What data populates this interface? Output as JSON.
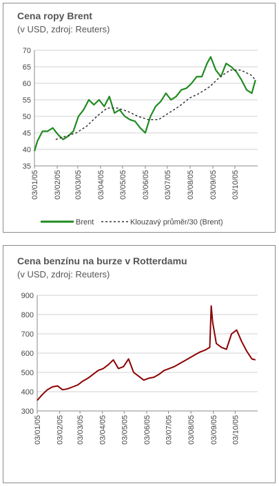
{
  "chart_data": [
    {
      "type": "line",
      "title": "Cena ropy Brent",
      "subtitle": "(v USD, zdroj: Reuters)",
      "ylim": [
        35,
        70
      ],
      "y_ticks": [
        "35",
        "40",
        "45",
        "50",
        "55",
        "60",
        "65",
        "70"
      ],
      "x_ticks": [
        "03/01/05",
        "03/02/05",
        "03/03/05",
        "03/04/05",
        "03/05/05",
        "03/06/05",
        "03/07/05",
        "03/08/05",
        "03/09/05",
        "03/10/05"
      ],
      "grid": "horizontal",
      "legend_position": "bottom",
      "colors": {
        "Brent": "#1f8a1f",
        "Klouzavý průměr/30 (Brent)": "#333333"
      },
      "series": [
        {
          "name": "Brent",
          "style": "solid",
          "x": [
            "2005-01-03",
            "2005-01-07",
            "2005-01-14",
            "2005-01-21",
            "2005-01-28",
            "2005-02-04",
            "2005-02-11",
            "2005-02-18",
            "2005-02-25",
            "2005-03-04",
            "2005-03-11",
            "2005-03-18",
            "2005-03-25",
            "2005-04-01",
            "2005-04-08",
            "2005-04-15",
            "2005-04-22",
            "2005-04-29",
            "2005-05-06",
            "2005-05-13",
            "2005-05-20",
            "2005-05-27",
            "2005-06-03",
            "2005-06-10",
            "2005-06-17",
            "2005-06-24",
            "2005-07-01",
            "2005-07-08",
            "2005-07-15",
            "2005-07-22",
            "2005-07-29",
            "2005-08-05",
            "2005-08-12",
            "2005-08-19",
            "2005-08-26",
            "2005-08-31",
            "2005-09-07",
            "2005-09-14",
            "2005-09-21",
            "2005-09-28",
            "2005-10-05",
            "2005-10-12",
            "2005-10-19",
            "2005-10-26",
            "2005-10-31"
          ],
          "y": [
            39.5,
            42.5,
            45.5,
            45.5,
            46.5,
            44.5,
            43,
            44,
            45.5,
            50,
            52,
            55,
            53.5,
            55,
            53,
            56,
            51,
            52,
            50,
            49,
            48.5,
            46.5,
            45,
            50,
            53,
            54.5,
            57,
            55,
            56,
            58,
            58.5,
            60,
            62,
            62,
            66,
            68,
            64,
            62,
            66,
            65,
            63.5,
            61,
            58,
            57,
            61
          ]
        },
        {
          "name": "Klouzavý průměr/30 (Brent)",
          "style": "dashed",
          "x": [
            "2005-02-01",
            "2005-02-15",
            "2005-03-01",
            "2005-03-15",
            "2005-03-29",
            "2005-04-12",
            "2005-04-26",
            "2005-05-10",
            "2005-05-24",
            "2005-06-07",
            "2005-06-21",
            "2005-07-05",
            "2005-07-19",
            "2005-08-02",
            "2005-08-16",
            "2005-08-30",
            "2005-09-13",
            "2005-09-27",
            "2005-10-11",
            "2005-10-25",
            "2005-10-31"
          ],
          "y": [
            43,
            44,
            45,
            47,
            50,
            52.5,
            52.5,
            51.5,
            50,
            49,
            49,
            51,
            53,
            55.5,
            57,
            59,
            62,
            64,
            64,
            62.5,
            61
          ]
        }
      ]
    },
    {
      "type": "line",
      "title": "Cena benzínu na burze v Rotterdamu",
      "subtitle": "(v USD, zdroj: Reuters)",
      "ylim": [
        300,
        900
      ],
      "y_ticks": [
        "300",
        "400",
        "500",
        "600",
        "700",
        "800",
        "900"
      ],
      "x_ticks": [
        "03/01/05",
        "03/02/05",
        "03/03/05",
        "03/04/05",
        "03/05/05",
        "03/06/05",
        "03/07/05",
        "03/08/05",
        "03/09/05",
        "03/10/05"
      ],
      "grid": "horizontal",
      "colors": {
        "line": "#8b0000"
      },
      "series": [
        {
          "x": [
            "2005-01-03",
            "2005-01-10",
            "2005-01-17",
            "2005-01-24",
            "2005-01-31",
            "2005-02-07",
            "2005-02-14",
            "2005-02-21",
            "2005-02-28",
            "2005-03-07",
            "2005-03-14",
            "2005-03-21",
            "2005-03-28",
            "2005-04-04",
            "2005-04-11",
            "2005-04-18",
            "2005-04-25",
            "2005-05-02",
            "2005-05-09",
            "2005-05-16",
            "2005-05-23",
            "2005-05-30",
            "2005-06-06",
            "2005-06-13",
            "2005-06-20",
            "2005-06-27",
            "2005-07-04",
            "2005-07-11",
            "2005-07-18",
            "2005-07-25",
            "2005-08-01",
            "2005-08-08",
            "2005-08-15",
            "2005-08-22",
            "2005-08-29",
            "2005-08-31",
            "2005-09-02",
            "2005-09-07",
            "2005-09-14",
            "2005-09-21",
            "2005-09-28",
            "2005-10-05",
            "2005-10-12",
            "2005-10-19",
            "2005-10-26",
            "2005-10-31"
          ],
          "y": [
            355,
            385,
            410,
            425,
            430,
            410,
            415,
            425,
            435,
            455,
            470,
            490,
            510,
            520,
            540,
            565,
            520,
            530,
            570,
            500,
            480,
            460,
            470,
            475,
            490,
            510,
            520,
            530,
            545,
            560,
            575,
            590,
            605,
            615,
            630,
            845,
            760,
            650,
            630,
            620,
            700,
            720,
            660,
            610,
            570,
            565
          ]
        }
      ]
    }
  ],
  "legend": {
    "brent": "Brent",
    "moving_average": "Klouzavý průměr/30 (Brent)"
  }
}
